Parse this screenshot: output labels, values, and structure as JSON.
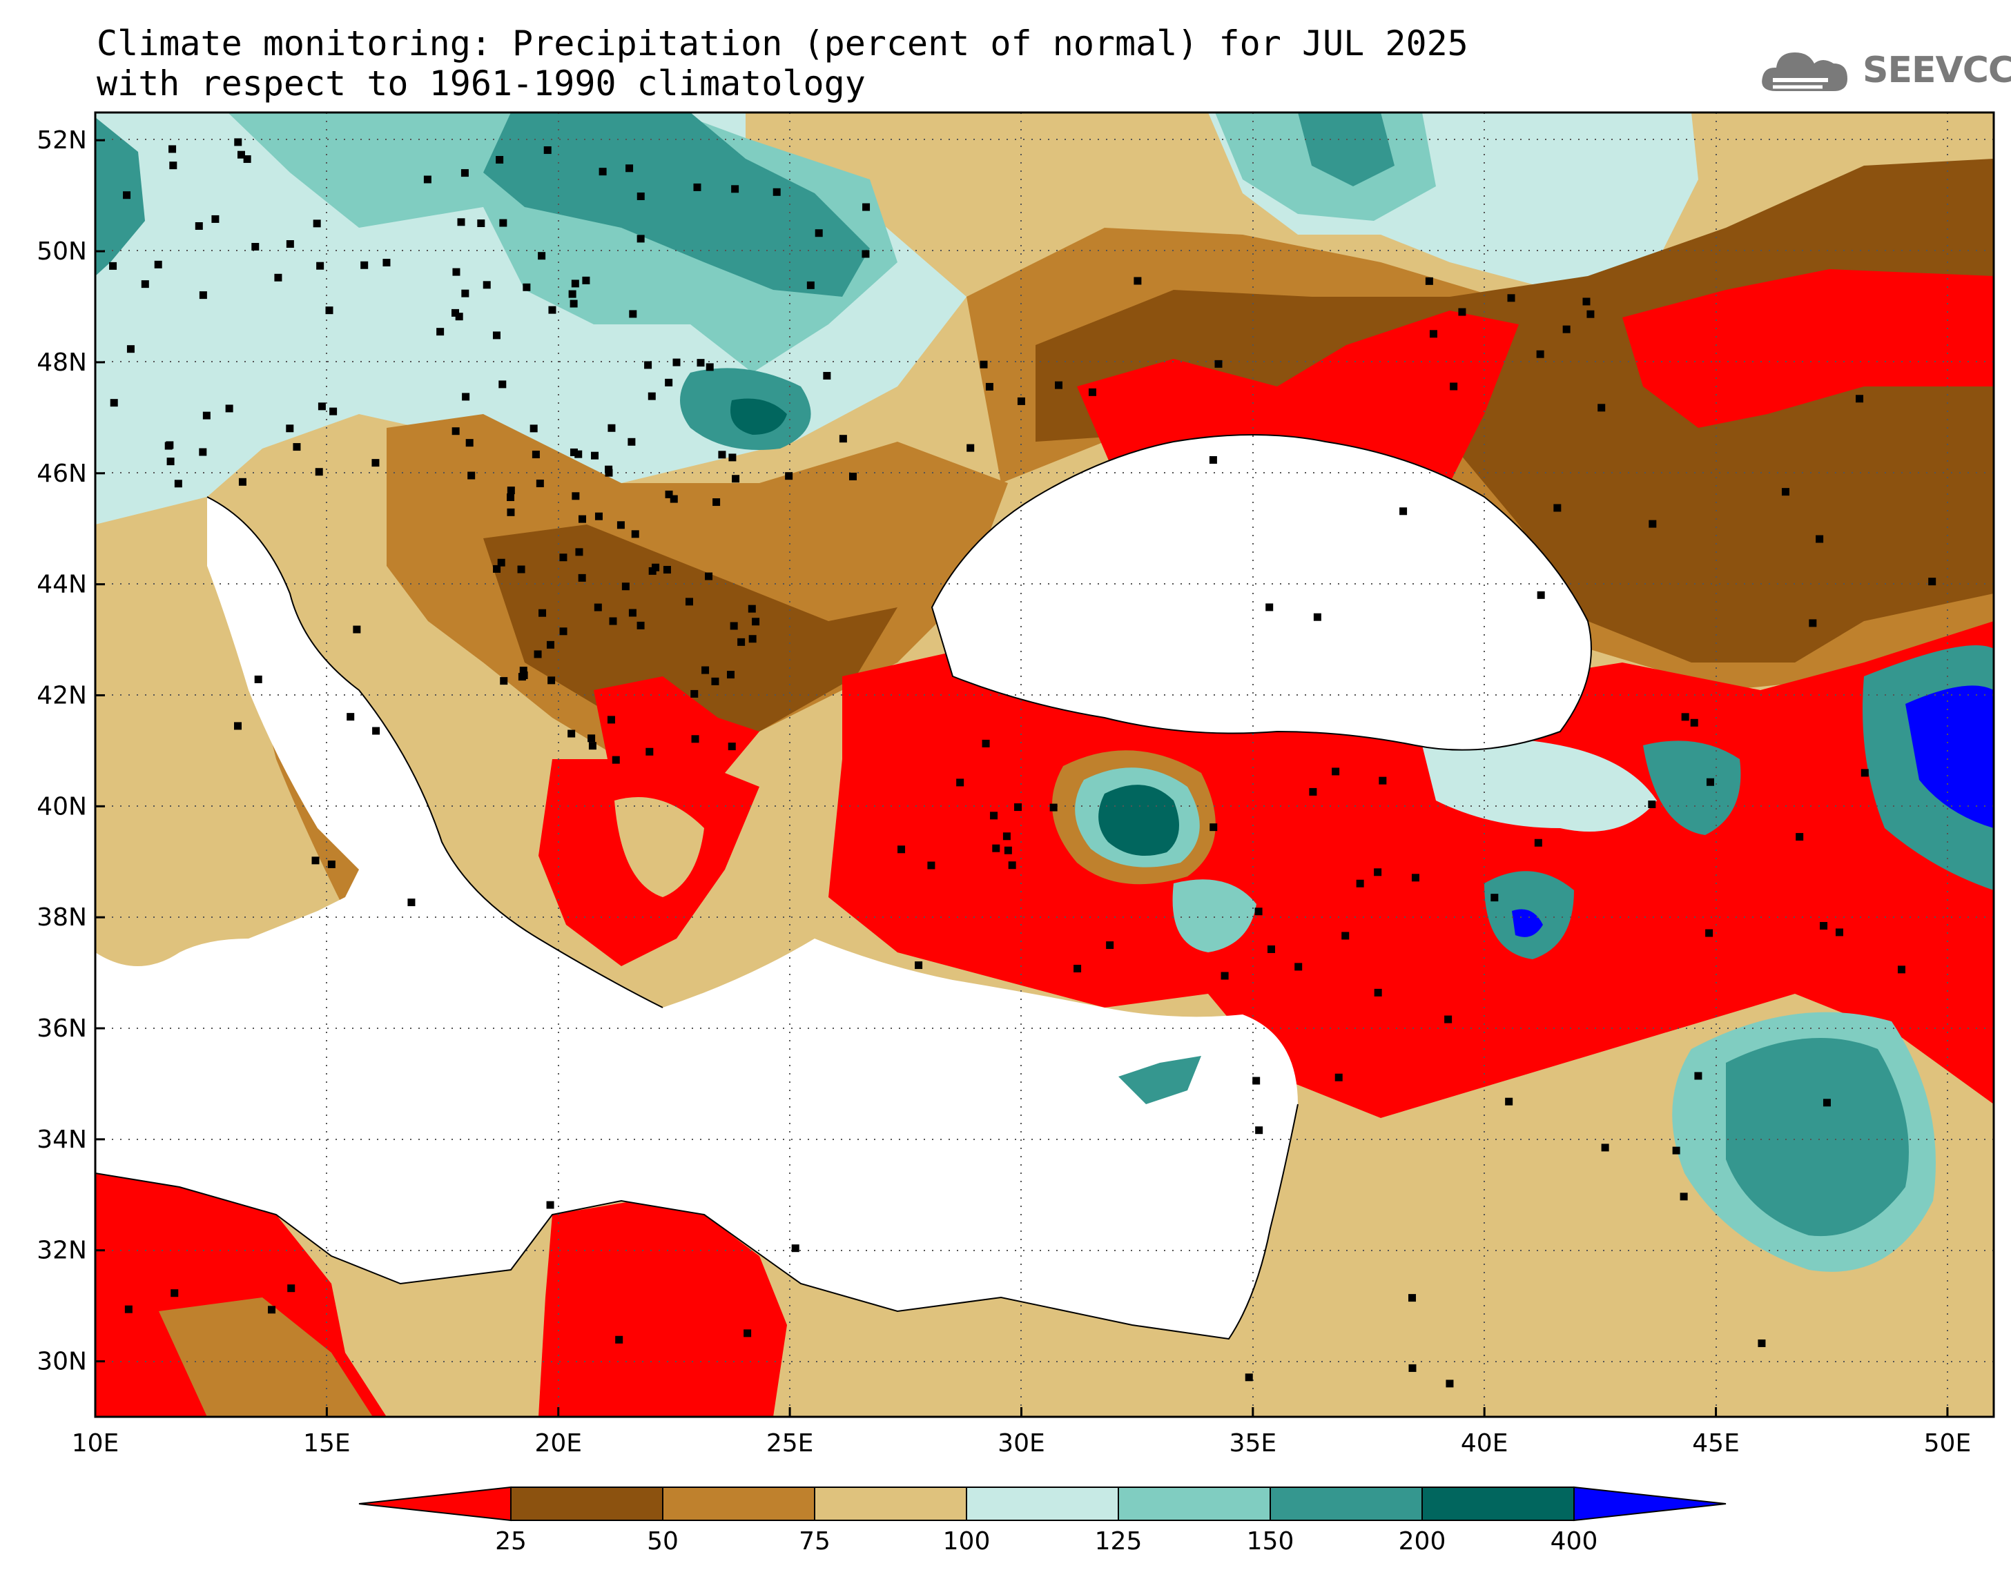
{
  "title": {
    "line1": "Climate monitoring: Precipitation (percent of normal) for JUL 2025",
    "line2": "with respect to 1961-1990 climatology"
  },
  "logo": {
    "text": "SEEVCCC",
    "icon": "cloud-icon"
  },
  "map": {
    "lon_range": [
      10,
      51
    ],
    "lat_range": [
      29,
      52.5
    ],
    "lon_ticks": [
      "10E",
      "15E",
      "20E",
      "25E",
      "30E",
      "35E",
      "40E",
      "45E",
      "50E"
    ],
    "lat_ticks": [
      "30N",
      "32N",
      "34N",
      "36N",
      "38N",
      "40N",
      "42N",
      "44N",
      "46N",
      "48N",
      "50N",
      "52N"
    ],
    "grid": "dotted"
  },
  "legend": {
    "labels": [
      "25",
      "50",
      "75",
      "100",
      "125",
      "150",
      "200",
      "400"
    ],
    "colors": [
      "#ff0000",
      "#8c520f",
      "#bf812d",
      "#dfc27d",
      "#c7eae5",
      "#80cdc1",
      "#35978f",
      "#01665e",
      "#0000ff"
    ]
  }
}
